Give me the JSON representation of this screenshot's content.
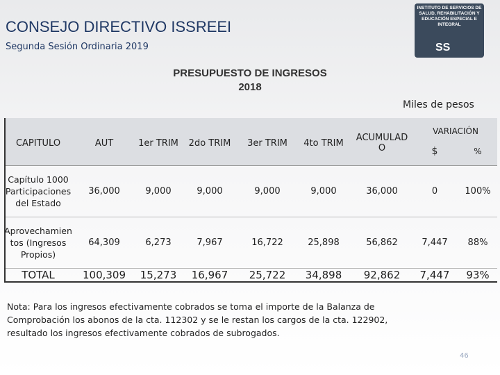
{
  "header": {
    "title": "CONSEJO DIRECTIVO ISSREEI",
    "subtitle": "Segunda Sesión Ordinaria 2019",
    "logo_text": "INSTITUTO DE SERVICIOS DE SALUD, REHABILITACIÓN Y EDUCACIÓN ESPECIAL E INTEGRAL",
    "logo_mark": "SS"
  },
  "heading": [
    "PRESUPUESTO DE INGRESOS",
    "2018"
  ],
  "units": "Miles de pesos",
  "table": {
    "columns": [
      "CAPITULO",
      "AUT",
      "1er TRIM",
      "2do TRIM",
      "3er TRIM",
      "4to TRIM",
      "ACUMULADO"
    ],
    "group": {
      "label": "VARIACIÓN",
      "columns": [
        "$",
        "%"
      ]
    },
    "rows": [
      [
        "Capítulo 1000 Participaciones del Estado",
        "36,000",
        "9,000",
        "9,000",
        "9,000",
        "9,000",
        "36,000",
        "0",
        "100%"
      ],
      [
        "Aprovechamientos (Ingresos Propios)",
        "64,309",
        "6,273",
        "7,967",
        "16,722",
        "25,898",
        "56,862",
        "7,447",
        "88%"
      ],
      [
        "TOTAL",
        "100,309",
        "15,273",
        "16,967",
        "25,722",
        "34,898",
        "92,862",
        "7,447",
        "93%"
      ]
    ]
  },
  "note": "Nota: Para los ingresos efectivamente cobrados se toma el importe de la Balanza de Comprobación los abonos de la cta. 112302 y se le restan los cargos de la cta. 122902, resultado los ingresos efectivamente cobrados de subrogados.",
  "page_number": "46"
}
